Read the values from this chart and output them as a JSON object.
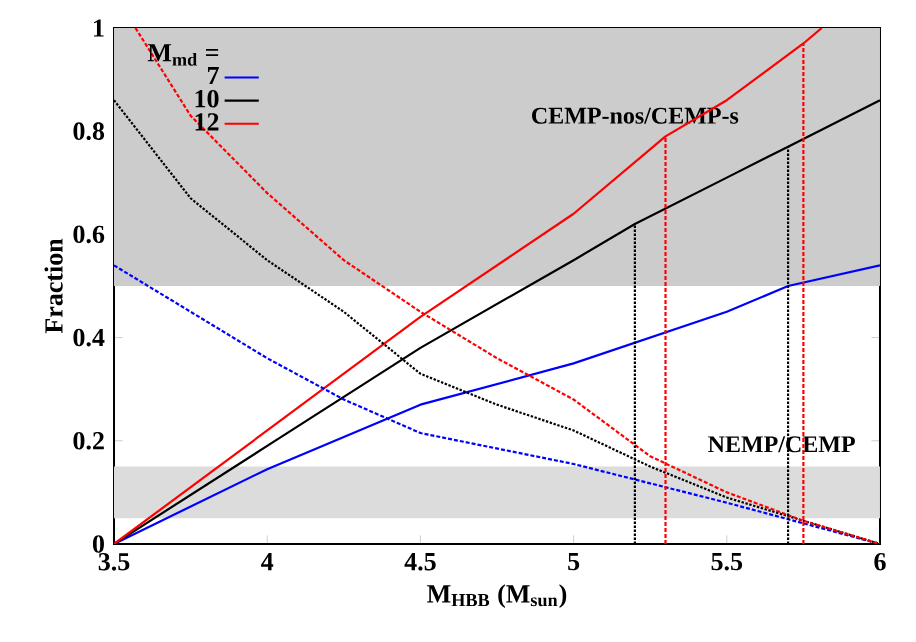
{
  "chart_data": {
    "type": "line",
    "xlabel": "M$_{HBB}$ (M$_{sun}$)",
    "ylabel": "Fraction",
    "legend_title": "M$_{md}$ =",
    "xlim": [
      3.5,
      6
    ],
    "ylim": [
      0,
      1
    ],
    "xticks": [
      3.5,
      4,
      4.5,
      5,
      5.5,
      6
    ],
    "yticks": [
      0,
      0.2,
      0.4,
      0.6,
      0.8,
      1
    ],
    "legend": "top left",
    "grid": false,
    "marker": "none",
    "series": [
      {
        "name": "7",
        "color": "#0000ff",
        "line_style": "solid",
        "x": [
          3.5,
          4,
          4.5,
          5,
          5.5,
          5.7,
          6
        ],
        "values": [
          0,
          0.145,
          0.27,
          0.35,
          0.45,
          0.5,
          0.54
        ]
      },
      {
        "name": "10",
        "color": "#000000",
        "line_style": "solid",
        "x": [
          3.5,
          4,
          4.5,
          5,
          5.2,
          5.5,
          5.7,
          6
        ],
        "values": [
          0,
          0.19,
          0.38,
          0.55,
          0.62,
          0.71,
          0.77,
          0.86
        ]
      },
      {
        "name": "12",
        "color": "#ff0000",
        "line_style": "solid",
        "x": [
          3.5,
          4,
          4.5,
          5,
          5.3,
          5.5,
          5.75,
          5.81
        ],
        "values": [
          0,
          0.22,
          0.44,
          0.64,
          0.79,
          0.86,
          0.97,
          1
        ]
      },
      {
        "color": "#0000ff",
        "line_style": "dashed",
        "x": [
          3.5,
          3.75,
          4,
          4.25,
          4.5,
          5,
          5.5,
          6
        ],
        "values": [
          0.54,
          0.45,
          0.36,
          0.28,
          0.215,
          0.155,
          0.08,
          0
        ]
      },
      {
        "color": "#000000",
        "line_style": "dotted",
        "x": [
          3.5,
          3.75,
          4,
          4.25,
          4.5,
          4.75,
          5,
          5.25,
          5.5,
          5.75,
          6
        ],
        "values": [
          0.86,
          0.67,
          0.55,
          0.45,
          0.33,
          0.27,
          0.22,
          0.15,
          0.09,
          0.045,
          0
        ]
      },
      {
        "color": "#ff0000",
        "line_style": "dashed",
        "x": [
          3.57,
          3.75,
          4,
          4.25,
          4.5,
          4.75,
          5,
          5.25,
          5.5,
          5.75,
          6
        ],
        "values": [
          1,
          0.83,
          0.68,
          0.55,
          0.45,
          0.36,
          0.28,
          0.17,
          0.1,
          0.045,
          0
        ]
      },
      {
        "color": "#000000",
        "line_style": "dotted",
        "x": [
          5.2,
          5.2
        ],
        "values": [
          0,
          0.62
        ]
      },
      {
        "color": "#000000",
        "line_style": "dotted",
        "x": [
          5.7,
          5.7
        ],
        "values": [
          0,
          0.77
        ]
      },
      {
        "color": "#ff0000",
        "line_style": "dashed",
        "x": [
          5.3,
          5.3
        ],
        "values": [
          0,
          0.79
        ]
      },
      {
        "color": "#ff0000",
        "line_style": "dashed",
        "x": [
          5.75,
          5.75
        ],
        "values": [
          0,
          0.97
        ]
      }
    ],
    "bands": [
      {
        "axis": "y",
        "from": 0.5,
        "to": 1,
        "label": "CEMP-nos/CEMP-s",
        "color": "#cccccc"
      },
      {
        "axis": "y",
        "from": 0.05,
        "to": 0.15,
        "label": "NEMP/CEMP",
        "color": "#dcdcdc"
      }
    ]
  }
}
